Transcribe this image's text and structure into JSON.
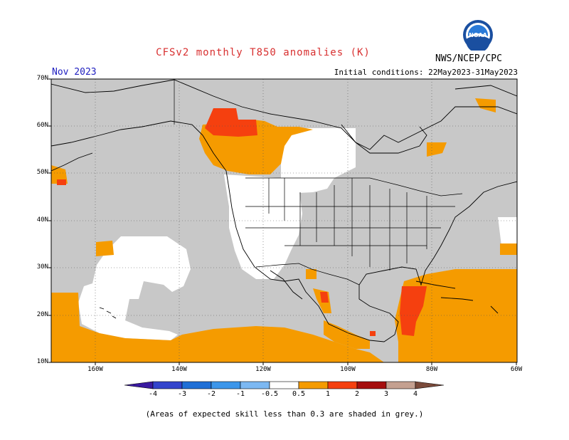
{
  "header": {
    "title": "CFSv2 monthly T850 anomalies (K)",
    "month": "Nov 2023",
    "agency": "NWS/NCEP/CPC",
    "initial_conditions": "Initial conditions: 22May2023-31May2023",
    "logo_text": "NOAA"
  },
  "axes": {
    "lat_labels": [
      "70N",
      "60N",
      "50N",
      "40N",
      "30N",
      "20N",
      "10N"
    ],
    "lon_labels": [
      "160W",
      "140W",
      "120W",
      "100W",
      "80W",
      "60W"
    ]
  },
  "colorbar": {
    "labels": [
      "-4",
      "-3",
      "-2",
      "-1",
      "-0.5",
      "0.5",
      "1",
      "2",
      "3",
      "4"
    ],
    "colors": [
      "#3a1aa0",
      "#3344cc",
      "#1f6fd6",
      "#3c96ea",
      "#7cb8f2",
      "#ffffff",
      "#f59b00",
      "#f5400f",
      "#a50e0e",
      "#c4a090",
      "#7a4a3a"
    ]
  },
  "legend": {
    "grey_color": "#c8c8c8",
    "white_color": "#ffffff"
  },
  "footnote": "(Areas of expected skill less than 0.3 are shaded in grey.)"
}
